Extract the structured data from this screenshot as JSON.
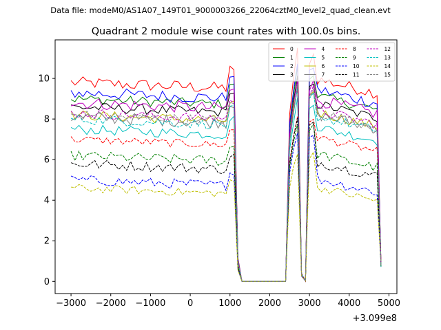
{
  "chart_data": {
    "type": "line",
    "suptitle": "Data file: modeM0/AS1A07_149T01_9000003266_22064cztM0_level2_quad_clean.evt",
    "title": "Quadrant 2 module wise count rates with 100.0s bins.",
    "xlabel": "",
    "ylabel": "",
    "x_offset_label": "+3.099e8",
    "xlim": [
      -3400,
      5200
    ],
    "ylim": [
      -0.6,
      11.9
    ],
    "x_ticks": [
      -3000,
      -2000,
      -1000,
      0,
      1000,
      2000,
      3000,
      4000,
      5000
    ],
    "x_tick_labels": [
      "−3000",
      "−2000",
      "−1000",
      "0",
      "1000",
      "2000",
      "3000",
      "4000",
      "5000"
    ],
    "y_ticks": [
      0,
      2,
      4,
      6,
      8,
      10
    ],
    "y_tick_labels": [
      "0",
      "2",
      "4",
      "6",
      "8",
      "10"
    ],
    "legend_position": "top-right",
    "x_start": -3000,
    "x_step": 100,
    "num_points": 79,
    "gap_zero_range": [
      1300,
      2400
    ],
    "series": [
      {
        "name": "0",
        "color": "#ff0000",
        "dash": "solid",
        "base": 9.8,
        "high": 11.4,
        "noise": 0.3
      },
      {
        "name": "1",
        "color": "#008000",
        "dash": "solid",
        "base": 9.0,
        "high": 10.5,
        "noise": 0.25
      },
      {
        "name": "2",
        "color": "#0000ff",
        "dash": "solid",
        "base": 9.3,
        "high": 10.8,
        "noise": 0.3
      },
      {
        "name": "3",
        "color": "#000000",
        "dash": "solid",
        "base": 8.6,
        "high": 10.0,
        "noise": 0.25
      },
      {
        "name": "4",
        "color": "#bf00bf",
        "dash": "solid",
        "base": 8.8,
        "high": 10.0,
        "noise": 0.3
      },
      {
        "name": "5",
        "color": "#00bfbf",
        "dash": "solid",
        "base": 7.5,
        "high": 9.0,
        "noise": 0.25
      },
      {
        "name": "6",
        "color": "#bfbf00",
        "dash": "solid",
        "base": 8.2,
        "high": 9.6,
        "noise": 0.25
      },
      {
        "name": "7",
        "color": "#808080",
        "dash": "solid",
        "base": 8.1,
        "high": 9.5,
        "noise": 0.3
      },
      {
        "name": "8",
        "color": "#ff0000",
        "dash": "dashed",
        "base": 7.0,
        "high": 8.2,
        "noise": 0.2
      },
      {
        "name": "9",
        "color": "#008000",
        "dash": "dashed",
        "base": 6.2,
        "high": 7.8,
        "noise": 0.25
      },
      {
        "name": "10",
        "color": "#0000ff",
        "dash": "dashed",
        "base": 5.0,
        "high": 7.4,
        "noise": 0.25
      },
      {
        "name": "11",
        "color": "#000000",
        "dash": "dashed",
        "base": 5.8,
        "high": 8.0,
        "noise": 0.25
      },
      {
        "name": "12",
        "color": "#bf00bf",
        "dash": "dashed",
        "base": 8.3,
        "high": 9.7,
        "noise": 0.25
      },
      {
        "name": "13",
        "color": "#00bfbf",
        "dash": "dashed",
        "base": 8.0,
        "high": 9.4,
        "noise": 0.25
      },
      {
        "name": "14",
        "color": "#bfbf00",
        "dash": "dashed",
        "base": 4.6,
        "high": 6.4,
        "noise": 0.2
      },
      {
        "name": "15",
        "color": "#808080",
        "dash": "dashed",
        "base": 8.2,
        "high": 9.6,
        "noise": 0.25
      }
    ]
  }
}
